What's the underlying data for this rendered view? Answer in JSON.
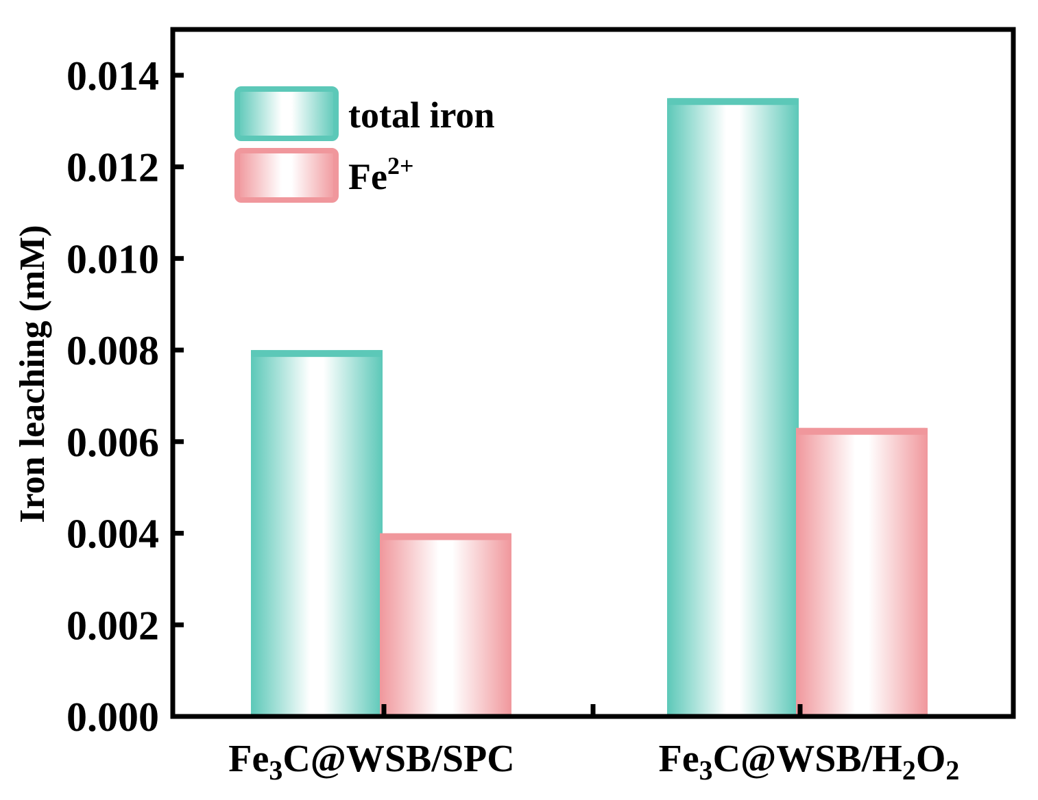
{
  "chart_data": {
    "type": "bar",
    "ylabel": "Iron leaching (mM)",
    "ylim": [
      0,
      0.015
    ],
    "yticks": [
      "0.000",
      "0.002",
      "0.004",
      "0.006",
      "0.008",
      "0.010",
      "0.012",
      "0.014"
    ],
    "categories": [
      {
        "main": "Fe",
        "parts": [
          [
            "Fe",
            ""
          ],
          [
            "3",
            "sub"
          ],
          [
            "C@WSB/SPC",
            ""
          ]
        ]
      },
      {
        "main": "Fe",
        "parts": [
          [
            "Fe",
            ""
          ],
          [
            "3",
            "sub"
          ],
          [
            "C@WSB/H",
            ""
          ],
          [
            "2",
            "sub"
          ],
          [
            "O",
            ""
          ],
          [
            "2",
            "sub"
          ]
        ]
      }
    ],
    "series": [
      {
        "name": "total iron",
        "name_parts": [
          [
            "total iron",
            ""
          ]
        ],
        "color": "#5cc8b8",
        "values": [
          0.008,
          0.0135
        ]
      },
      {
        "name": "Fe2+",
        "name_parts": [
          [
            "Fe",
            ""
          ],
          [
            "2+",
            "sup"
          ]
        ],
        "color": "#f0979c",
        "values": [
          0.004,
          0.0063
        ]
      }
    ],
    "legend_position": "top-left",
    "grid": false
  }
}
